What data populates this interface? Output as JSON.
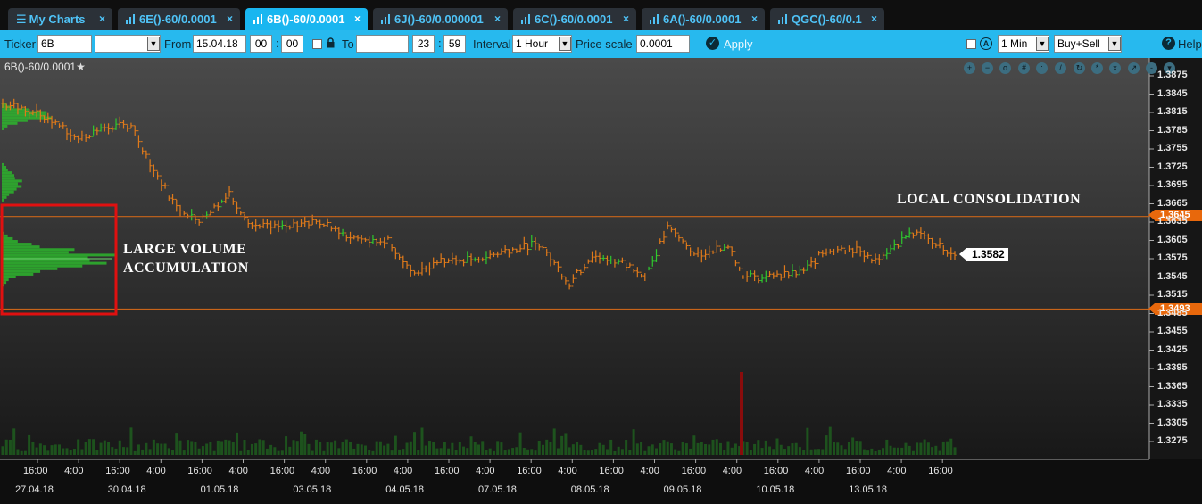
{
  "tabs": [
    {
      "label": "My Charts",
      "icon": "menu-icon",
      "active": false
    },
    {
      "label": "6E()-60/0.0001",
      "icon": "bar-chart-icon",
      "active": false
    },
    {
      "label": "6B()-60/0.0001",
      "icon": "bar-chart-icon",
      "active": true
    },
    {
      "label": "6J()-60/0.000001",
      "icon": "bar-chart-icon",
      "active": false
    },
    {
      "label": "6C()-60/0.0001",
      "icon": "bar-chart-icon",
      "active": false
    },
    {
      "label": "6A()-60/0.0001",
      "icon": "bar-chart-icon",
      "active": false
    },
    {
      "label": "QGC()-60/0.1",
      "icon": "bar-chart-icon",
      "active": false
    }
  ],
  "tab_close_glyph": "×",
  "toolbar": {
    "ticker_label": "Ticker",
    "ticker_value": "6B",
    "ticker_dropdown_value": "",
    "from_label": "From",
    "from_date": "15.04.18",
    "from_hour": "00",
    "from_minute": "00",
    "to_label": "To",
    "to_date": "",
    "to_hour": "23",
    "to_minute": "59",
    "interval_label": "Interval",
    "interval_value": "1 Hour",
    "price_scale_label": "Price scale",
    "price_scale_value": "0.0001",
    "apply_label": "Apply",
    "timeframe_value": "1 Min",
    "side_value": "Buy+Sell",
    "help_label": "Help"
  },
  "chart": {
    "title": "6B()-60/0.0001",
    "star": "★",
    "annotation_consolidation": "LOCAL CONSOLIDATION",
    "annotation_volume_line1": "LARGE VOLUME",
    "annotation_volume_line2": "ACCUMULATION",
    "upper_level": "1.3645",
    "lower_level": "1.3493",
    "last_price": "1.3582",
    "colors": {
      "background_top": "#4a4a4a",
      "background_bottom": "#181818",
      "bar_down": "#e07a1a",
      "bar_up": "#2ec82e",
      "level_line": "#c8641a",
      "highlight_box": "#e01010",
      "volume_profile": "#2db52d",
      "spike": "#8a0c0c"
    },
    "tools": [
      "zoom-in-icon",
      "zoom-out-icon",
      "zoom-fit-icon",
      "grid-icon",
      "pencil-icon",
      "refresh-icon",
      "settings-icon",
      "close-icon",
      "expand-icon",
      "collapse-icon"
    ]
  },
  "chart_data": {
    "type": "ohlc",
    "instrument": "6B()-60/0.0001",
    "y_ticks": [
      "1.3875",
      "1.3845",
      "1.3815",
      "1.3785",
      "1.3755",
      "1.3725",
      "1.3695",
      "1.3665",
      "1.3635",
      "1.3605",
      "1.3575",
      "1.3545",
      "1.3515",
      "1.3485",
      "1.3455",
      "1.3425",
      "1.3395",
      "1.3365",
      "1.3335",
      "1.3305",
      "1.3275"
    ],
    "ylim": [
      1.326,
      1.3895
    ],
    "x_time_labels": [
      "16:00",
      "4:00",
      "16:00",
      "4:00",
      "16:00",
      "4:00",
      "16:00",
      "4:00",
      "16:00",
      "4:00",
      "16:00",
      "4:00",
      "16:00",
      "4:00",
      "16:00",
      "4:00",
      "16:00",
      "4:00",
      "16:00",
      "4:00",
      "16:00",
      "4:00",
      "16:00"
    ],
    "x_date_labels": [
      "27.04.18",
      "30.04.18",
      "01.05.18",
      "03.05.18",
      "04.05.18",
      "07.05.18",
      "08.05.18",
      "09.05.18",
      "10.05.18",
      "13.05.18"
    ],
    "price_path": [
      {
        "t": 0,
        "p": 1.383
      },
      {
        "t": 6,
        "p": 1.382
      },
      {
        "t": 14,
        "p": 1.38
      },
      {
        "t": 20,
        "p": 1.377
      },
      {
        "t": 26,
        "p": 1.379
      },
      {
        "t": 34,
        "p": 1.3795
      },
      {
        "t": 40,
        "p": 1.372
      },
      {
        "t": 46,
        "p": 1.366
      },
      {
        "t": 52,
        "p": 1.364
      },
      {
        "t": 60,
        "p": 1.368
      },
      {
        "t": 66,
        "p": 1.363
      },
      {
        "t": 74,
        "p": 1.3625
      },
      {
        "t": 84,
        "p": 1.3635
      },
      {
        "t": 92,
        "p": 1.361
      },
      {
        "t": 102,
        "p": 1.3605
      },
      {
        "t": 108,
        "p": 1.355
      },
      {
        "t": 116,
        "p": 1.357
      },
      {
        "t": 126,
        "p": 1.3575
      },
      {
        "t": 134,
        "p": 1.359
      },
      {
        "t": 142,
        "p": 1.36
      },
      {
        "t": 150,
        "p": 1.3535
      },
      {
        "t": 156,
        "p": 1.358
      },
      {
        "t": 164,
        "p": 1.357
      },
      {
        "t": 170,
        "p": 1.3545
      },
      {
        "t": 176,
        "p": 1.3625
      },
      {
        "t": 184,
        "p": 1.358
      },
      {
        "t": 192,
        "p": 1.36
      },
      {
        "t": 196,
        "p": 1.3545
      },
      {
        "t": 204,
        "p": 1.3545
      },
      {
        "t": 212,
        "p": 1.3555
      },
      {
        "t": 218,
        "p": 1.359
      },
      {
        "t": 226,
        "p": 1.359
      },
      {
        "t": 232,
        "p": 1.357
      },
      {
        "t": 240,
        "p": 1.362
      },
      {
        "t": 246,
        "p": 1.3605
      },
      {
        "t": 252,
        "p": 1.358
      }
    ],
    "last": 1.3582,
    "levels": [
      1.3645,
      1.3493
    ]
  }
}
